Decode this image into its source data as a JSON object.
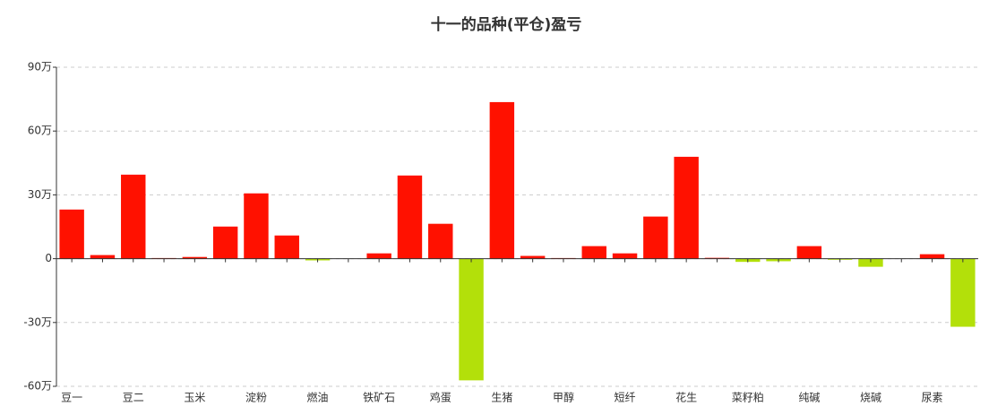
{
  "chart_data": {
    "type": "bar",
    "title": "十一的品种(平仓)盈亏",
    "categories": [
      "豆一",
      null,
      "豆二",
      null,
      "玉米",
      null,
      "淀粉",
      null,
      "燃油",
      null,
      "铁矿石",
      null,
      "鸡蛋",
      null,
      "生猪",
      null,
      "甲醇",
      null,
      "短纤",
      null,
      "花生",
      null,
      "菜籽粕",
      null,
      "纯碱",
      null,
      "烧碱",
      null,
      "尿素",
      null
    ],
    "values": [
      23.1,
      1.7,
      39.5,
      0.3,
      0.8,
      15.1,
      30.7,
      10.9,
      -0.8,
      0,
      2.5,
      39.1,
      16.4,
      -57.2,
      73.6,
      1.3,
      0.3,
      5.9,
      2.5,
      19.8,
      47.9,
      0.4,
      -1.5,
      -1.2,
      5.9,
      -0.5,
      -3.8,
      0,
      2.1,
      -32
    ],
    "positive_color": "#ff1100",
    "negative_color": "#b3e00a",
    "ylim": [
      -60,
      90
    ],
    "yticks": [
      {
        "value": -60,
        "label": "-60万"
      },
      {
        "value": -30,
        "label": "-30万"
      },
      0,
      {
        "value": 30,
        "label": "30万"
      },
      {
        "value": 60,
        "label": "60万"
      },
      {
        "value": 90,
        "label": "90万"
      }
    ],
    "grid": true
  }
}
